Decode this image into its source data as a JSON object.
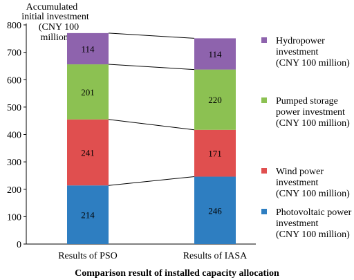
{
  "chart_data": {
    "type": "bar",
    "stacked": true,
    "categories": [
      "Results of PSO",
      "Results of IASA"
    ],
    "ylabel": [
      "Accumulated",
      "initial investment",
      "(CNY 100",
      "million)"
    ],
    "xlabel": "Comparison result of installed capacity allocation",
    "ylim": [
      0,
      800
    ],
    "yticks": [
      0,
      100,
      200,
      300,
      400,
      500,
      600,
      700,
      800
    ],
    "grid": false,
    "legend_position": "right",
    "connector_lines": true,
    "series": [
      {
        "name": [
          "Photovoltaic power",
          "investment",
          "(CNY 100 million)"
        ],
        "values": [
          214,
          246
        ],
        "color": "#2E7EC1"
      },
      {
        "name": [
          "Wind power",
          "investment",
          "(CNY 100 million)"
        ],
        "values": [
          241,
          171
        ],
        "color": "#E04F4F"
      },
      {
        "name": [
          "Pumped storage",
          "power investment",
          "(CNY 100 million)"
        ],
        "values": [
          201,
          220
        ],
        "color": "#8CC152"
      },
      {
        "name": [
          "Hydropower",
          "investment",
          "(CNY 100 million)"
        ],
        "values": [
          114,
          114
        ],
        "color": "#8E63AD"
      }
    ]
  }
}
